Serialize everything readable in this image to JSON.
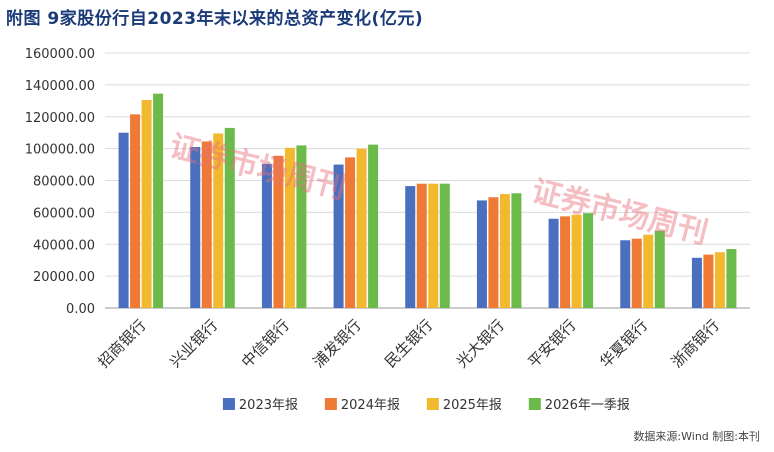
{
  "chart_data": {
    "type": "bar",
    "title": "附图  9家股份行自2023年末以来的总资产变化(亿元)",
    "xlabel": "",
    "ylabel": "",
    "ylim": [
      0,
      160000
    ],
    "yticks": [
      0,
      20000,
      40000,
      60000,
      80000,
      100000,
      120000,
      140000,
      160000
    ],
    "ytick_labels": [
      "0.00",
      "20000.00",
      "40000.00",
      "60000.00",
      "80000.00",
      "100000.00",
      "120000.00",
      "140000.00",
      "160000.00"
    ],
    "grid": true,
    "legend_position": "bottom",
    "categories": [
      "招商银行",
      "兴业银行",
      "中信银行",
      "浦发银行",
      "民生银行",
      "光大银行",
      "平安银行",
      "华夏银行",
      "浙商银行"
    ],
    "series": [
      {
        "name": "2023年报",
        "color": "#4a6fbf",
        "values": [
          110000,
          101000,
          90500,
          90000,
          76500,
          67500,
          56000,
          42500,
          31500
        ]
      },
      {
        "name": "2024年报",
        "color": "#ee7a35",
        "values": [
          121500,
          104500,
          95500,
          94500,
          78000,
          69500,
          57500,
          43500,
          33500
        ]
      },
      {
        "name": "2025年报",
        "color": "#f2b92e",
        "values": [
          130500,
          109500,
          100500,
          100000,
          78000,
          71500,
          58500,
          46000,
          35000
        ]
      },
      {
        "name": "2026年一季报",
        "color": "#6cba4a",
        "values": [
          134500,
          113000,
          102000,
          102500,
          78000,
          72000,
          59500,
          48500,
          37000
        ]
      }
    ],
    "source": "数据来源:Wind    制图:本刊"
  },
  "watermark": {
    "text": "证券市场周刊",
    "color": "#e8707a"
  }
}
